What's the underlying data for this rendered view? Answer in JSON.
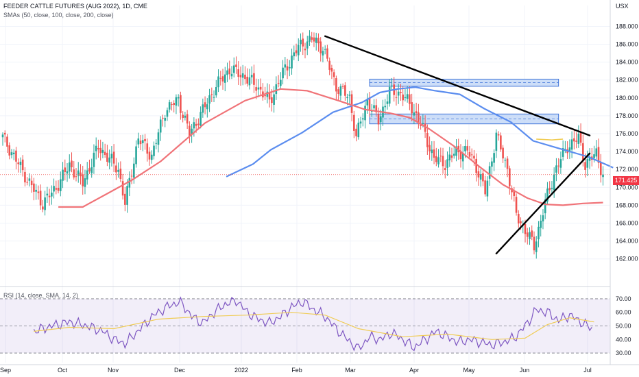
{
  "header": {
    "title": "FEEDER CATTLE FUTURES (AUG 2022), 1D, CME",
    "indicator": "SMAs (50, close, 100, close, 200, close)",
    "currency": "USX"
  },
  "last_price": "171.425",
  "rsi": {
    "label": "RSI (14, close, SMA, 14, 2)",
    "ticks": [
      "70.00",
      "60.00",
      "50.00",
      "40.00",
      "30.00"
    ]
  },
  "colors": {
    "up": "#26a69a",
    "down": "#ef5350",
    "sma50": "#f07378",
    "sma100": "#5b8def",
    "trend": "#000000",
    "zone_fill": "#bcd3f5",
    "zone_line": "#3f74d9",
    "rsi": "#7e57c2",
    "rsi_sma": "#f0cc54"
  },
  "chart_data": {
    "type": "candlestick",
    "title": "FEEDER CATTLE FUTURES (AUG 2022), 1D, CME",
    "ylabel": "USX",
    "ylim": [
      160.6,
      188.8
    ],
    "y_ticks": [
      "188.000",
      "186.000",
      "184.000",
      "182.000",
      "180.000",
      "178.000",
      "176.000",
      "174.000",
      "172.000",
      "170.000",
      "168.000",
      "166.000",
      "164.000",
      "162.000"
    ],
    "x_ticks": [
      "Sep",
      "Oct",
      "Nov",
      "Dec",
      "2022",
      "Feb",
      "Mar",
      "Apr",
      "May",
      "Jun",
      "Jul"
    ],
    "price_keypoints": [
      [
        0,
        175.6
      ],
      [
        5,
        173.5
      ],
      [
        12,
        170.5
      ],
      [
        18,
        168.2
      ],
      [
        24,
        170
      ],
      [
        30,
        172.5
      ],
      [
        36,
        170.5
      ],
      [
        43,
        174.5
      ],
      [
        49,
        172.9
      ],
      [
        52,
        172
      ],
      [
        55,
        168.2
      ],
      [
        61,
        175.5
      ],
      [
        67,
        173.5
      ],
      [
        73,
        178.6
      ],
      [
        79,
        179.8
      ],
      [
        84,
        176
      ],
      [
        90,
        178.6
      ],
      [
        96,
        181.3
      ],
      [
        102,
        183.2
      ],
      [
        108,
        182.5
      ],
      [
        114,
        181.4
      ],
      [
        120,
        179.6
      ],
      [
        126,
        182.8
      ],
      [
        133,
        185.7
      ],
      [
        139,
        186.6
      ],
      [
        144,
        185.6
      ],
      [
        147,
        183.4
      ],
      [
        150,
        181.3
      ],
      [
        156,
        180
      ],
      [
        159,
        175.6
      ],
      [
        164,
        179.8
      ],
      [
        169,
        177.5
      ],
      [
        174,
        180.7
      ],
      [
        179,
        180.5
      ],
      [
        184,
        179
      ],
      [
        189,
        176.5
      ],
      [
        194,
        173.2
      ],
      [
        199,
        172.7
      ],
      [
        204,
        174
      ],
      [
        209,
        174
      ],
      [
        212,
        173
      ],
      [
        217,
        169.5
      ],
      [
        222,
        175.8
      ],
      [
        227,
        172.1
      ],
      [
        231,
        166.9
      ],
      [
        236,
        164.8
      ],
      [
        239,
        163.4
      ],
      [
        244,
        168.3
      ],
      [
        249,
        172.2
      ],
      [
        254,
        174.6
      ],
      [
        259,
        175.5
      ],
      [
        262,
        172.6
      ],
      [
        267,
        173.8
      ],
      [
        270,
        171.4
      ]
    ],
    "sma50_points": [
      [
        0,
        171.4
      ],
      [
        11,
        171.4
      ],
      [
        22,
        172.9
      ],
      [
        33,
        174.4
      ],
      [
        46,
        176.5
      ],
      [
        66,
        180.8
      ],
      [
        84,
        183.3
      ],
      [
        100,
        184.6
      ],
      [
        112,
        184.4
      ],
      [
        126,
        183.3
      ],
      [
        138,
        182.3
      ],
      [
        149,
        181.9
      ],
      [
        158,
        181.4
      ],
      [
        167,
        180.1
      ],
      [
        178,
        178.2
      ],
      [
        190,
        175.8
      ],
      [
        200,
        173.9
      ],
      [
        211,
        172.4
      ],
      [
        219,
        171.7
      ],
      [
        227,
        171.6
      ],
      [
        236,
        171.8
      ],
      [
        245,
        171.9
      ]
    ],
    "sma100_points": [
      [
        62,
        174.6
      ],
      [
        74,
        176
      ],
      [
        82,
        177.6
      ],
      [
        96,
        179.5
      ],
      [
        110,
        181.8
      ],
      [
        123,
        182.9
      ],
      [
        131,
        184
      ],
      [
        139,
        184.4
      ],
      [
        147,
        184.6
      ],
      [
        156,
        184.2
      ],
      [
        167,
        183.8
      ],
      [
        178,
        182.2
      ],
      [
        190,
        180.7
      ],
      [
        200,
        178.6
      ],
      [
        211,
        177.8
      ],
      [
        225,
        176.8
      ],
      [
        236,
        175.6
      ]
    ],
    "sma200_points": [
      [
        240,
        175.4
      ],
      [
        247,
        175.3
      ],
      [
        252,
        175.4
      ]
    ],
    "trendlines": [
      {
        "from": [
          145,
          186.9
        ],
        "to": [
          264,
          175.8
        ]
      },
      {
        "from": [
          222,
          162.6
        ],
        "to": [
          264,
          173.8
        ]
      }
    ],
    "zones": [
      {
        "from": 165,
        "to": 250,
        "top": 182.1,
        "bottom": 181.3
      },
      {
        "from": 165,
        "to": 250,
        "top": 178.2,
        "bottom": 177.1
      }
    ],
    "rsi_ylim": [
      27,
      72
    ],
    "rsi_keypoints": [
      [
        14,
        46
      ],
      [
        22,
        50
      ],
      [
        30,
        53
      ],
      [
        38,
        50
      ],
      [
        45,
        46
      ],
      [
        50,
        40
      ],
      [
        55,
        37
      ],
      [
        60,
        45
      ],
      [
        68,
        58
      ],
      [
        75,
        65
      ],
      [
        80,
        68
      ],
      [
        85,
        57
      ],
      [
        90,
        52
      ],
      [
        95,
        60
      ],
      [
        100,
        66
      ],
      [
        105,
        69
      ],
      [
        110,
        60
      ],
      [
        115,
        55
      ],
      [
        120,
        52
      ],
      [
        125,
        57
      ],
      [
        130,
        64
      ],
      [
        135,
        68
      ],
      [
        140,
        62
      ],
      [
        145,
        57
      ],
      [
        150,
        48
      ],
      [
        155,
        40
      ],
      [
        160,
        33
      ],
      [
        165,
        42
      ],
      [
        170,
        40
      ],
      [
        175,
        45
      ],
      [
        180,
        40
      ],
      [
        185,
        34
      ],
      [
        190,
        40
      ],
      [
        195,
        46
      ],
      [
        200,
        42
      ],
      [
        205,
        38
      ],
      [
        210,
        40
      ],
      [
        215,
        38
      ],
      [
        220,
        36
      ],
      [
        225,
        38
      ],
      [
        230,
        41
      ],
      [
        235,
        50
      ],
      [
        240,
        62
      ],
      [
        245,
        60
      ],
      [
        250,
        54
      ],
      [
        255,
        58
      ],
      [
        260,
        53
      ],
      [
        265,
        48
      ]
    ],
    "rsi_sma_keypoints": [
      [
        14,
        46
      ],
      [
        30,
        49
      ],
      [
        50,
        48
      ],
      [
        70,
        55
      ],
      [
        90,
        57
      ],
      [
        110,
        58
      ],
      [
        130,
        60
      ],
      [
        145,
        58
      ],
      [
        160,
        48
      ],
      [
        180,
        42
      ],
      [
        200,
        44
      ],
      [
        220,
        40
      ],
      [
        235,
        41
      ],
      [
        245,
        51
      ],
      [
        255,
        56
      ],
      [
        266,
        53
      ]
    ]
  }
}
